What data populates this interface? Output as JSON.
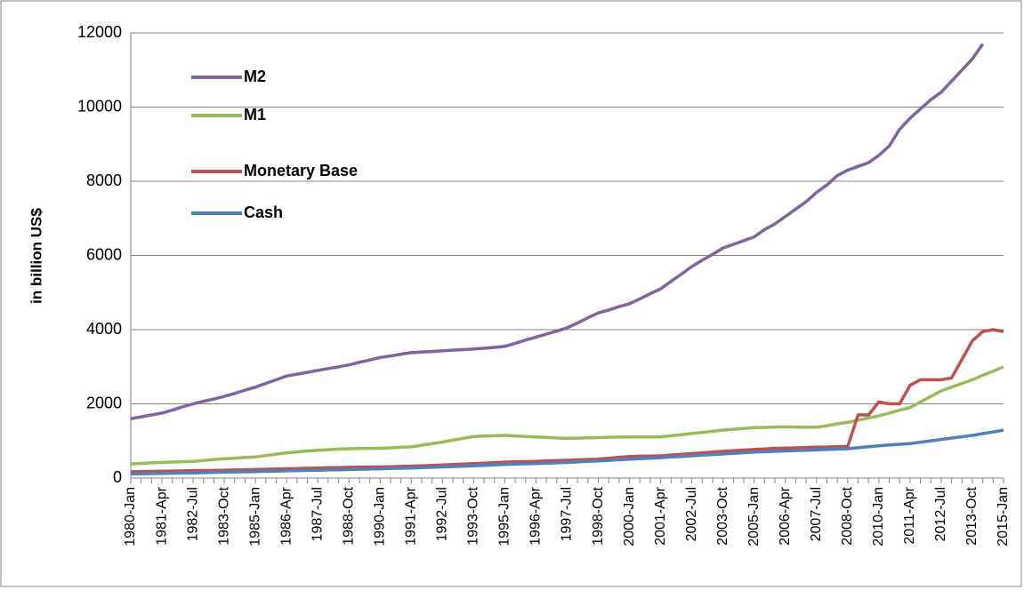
{
  "chart_data": {
    "type": "line",
    "ylabel": "in billion US$",
    "categories": [
      "1980-Jan",
      null,
      null,
      "1981-Apr",
      null,
      null,
      "1982-Jul",
      null,
      null,
      "1983-Oct",
      null,
      null,
      "1985-Jan",
      null,
      null,
      "1986-Apr",
      null,
      null,
      "1987-Jul",
      null,
      null,
      "1988-Oct",
      null,
      null,
      "1990-Jan",
      null,
      null,
      "1991-Apr",
      null,
      null,
      "1992-Jul",
      null,
      null,
      "1993-Oct",
      null,
      null,
      "1995-Jan",
      null,
      null,
      "1996-Apr",
      null,
      null,
      "1997-Jul",
      null,
      null,
      "1998-Oct",
      null,
      null,
      "2000-Jan",
      null,
      null,
      "2001-Apr",
      null,
      null,
      "2002-Jul",
      null,
      null,
      "2003-Oct",
      null,
      null,
      "2005-Jan",
      null,
      null,
      "2006-Apr",
      null,
      null,
      "2007-Jul",
      null,
      null,
      "2008-Oct",
      null,
      null,
      "2010-Jan",
      null,
      null,
      "2011-Apr",
      null,
      null,
      "2012-Jul",
      null,
      null,
      "2013-Oct",
      null,
      null,
      "2015-Jan"
    ],
    "series": [
      {
        "name": "M2",
        "color": "#8064a2",
        "values": [
          1600,
          1650,
          1700,
          1750,
          1830,
          1920,
          2000,
          2070,
          2130,
          2200,
          2280,
          2370,
          2450,
          2550,
          2650,
          2750,
          2800,
          2850,
          2900,
          2950,
          3000,
          3050,
          3120,
          3180,
          3250,
          3290,
          3340,
          3380,
          3400,
          3410,
          3430,
          3450,
          3460,
          3480,
          3500,
          3520,
          3550,
          3630,
          3720,
          3800,
          3880,
          3960,
          4050,
          4180,
          4320,
          4450,
          4530,
          4620,
          4700,
          4830,
          4970,
          5100,
          5300,
          5500,
          5700,
          5870,
          6030,
          6200,
          6300,
          6400,
          6500,
          6700,
          6850,
          7050,
          7250,
          7450,
          7700,
          7900,
          8150,
          8300,
          8400,
          8500,
          8700,
          8950,
          9400,
          9700,
          9950,
          10200,
          10400,
          10700,
          11000,
          11300,
          11700,
          null,
          null
        ]
      },
      {
        "name": "M1",
        "color": "#9bbb59",
        "values": [
          380,
          395,
          410,
          420,
          430,
          440,
          450,
          475,
          500,
          520,
          535,
          555,
          570,
          605,
          645,
          680,
          705,
          730,
          750,
          765,
          780,
          790,
          795,
          800,
          800,
          815,
          830,
          840,
          885,
          930,
          970,
          1020,
          1070,
          1120,
          1130,
          1140,
          1150,
          1135,
          1120,
          1110,
          1095,
          1080,
          1070,
          1075,
          1085,
          1090,
          1100,
          1105,
          1110,
          1110,
          1110,
          1110,
          1140,
          1170,
          1200,
          1230,
          1260,
          1290,
          1315,
          1340,
          1360,
          1365,
          1375,
          1380,
          1375,
          1370,
          1370,
          1410,
          1460,
          1500,
          1560,
          1620,
          1680,
          1750,
          1830,
          1900,
          2050,
          2200,
          2350,
          2450,
          2550,
          2650,
          2770,
          2880,
          3000
        ]
      },
      {
        "name": "Monetary Base",
        "color": "#c0504d",
        "values": [
          170,
          175,
          180,
          185,
          190,
          195,
          200,
          203,
          207,
          210,
          217,
          223,
          230,
          237,
          243,
          250,
          257,
          263,
          270,
          277,
          283,
          290,
          293,
          297,
          300,
          307,
          313,
          320,
          330,
          340,
          350,
          363,
          377,
          390,
          403,
          417,
          430,
          437,
          443,
          450,
          460,
          470,
          480,
          490,
          500,
          510,
          535,
          560,
          580,
          590,
          595,
          600,
          620,
          640,
          660,
          680,
          700,
          720,
          735,
          755,
          770,
          785,
          800,
          810,
          815,
          825,
          830,
          835,
          845,
          850,
          1700,
          1700,
          2050,
          2000,
          2000,
          2500,
          2650,
          2650,
          2650,
          2700,
          3200,
          3700,
          3950,
          4000,
          3950
        ]
      },
      {
        "name": "Cash",
        "color": "#4f81bd",
        "values": [
          110,
          115,
          120,
          125,
          130,
          135,
          140,
          147,
          153,
          160,
          165,
          170,
          175,
          182,
          188,
          195,
          200,
          205,
          210,
          217,
          223,
          230,
          237,
          243,
          250,
          257,
          263,
          270,
          280,
          290,
          300,
          310,
          320,
          330,
          343,
          357,
          370,
          377,
          383,
          390,
          400,
          410,
          420,
          433,
          447,
          460,
          477,
          493,
          510,
          523,
          537,
          550,
          567,
          583,
          600,
          617,
          633,
          650,
          667,
          683,
          700,
          710,
          720,
          730,
          740,
          750,
          760,
          770,
          780,
          790,
          817,
          843,
          870,
          890,
          910,
          930,
          967,
          1003,
          1040,
          1077,
          1113,
          1150,
          1197,
          1243,
          1290
        ]
      }
    ],
    "ylim": [
      0,
      12000
    ],
    "yticks": [
      0,
      2000,
      4000,
      6000,
      8000,
      10000,
      12000
    ],
    "grid": true,
    "legend": "upper left"
  }
}
